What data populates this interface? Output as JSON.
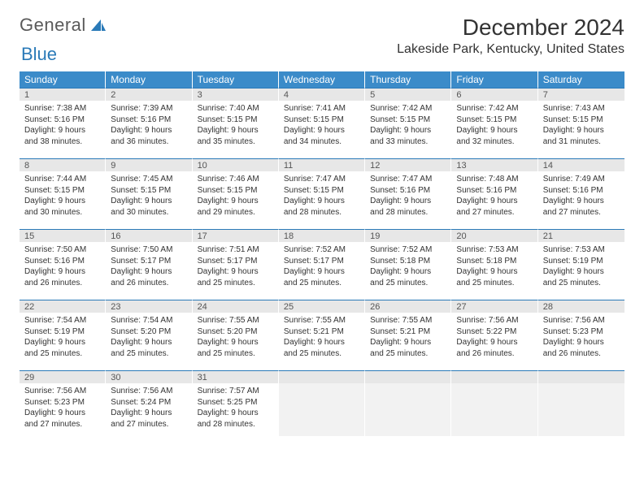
{
  "logo": {
    "text1": "General",
    "text2": "Blue"
  },
  "title": "December 2024",
  "location": "Lakeside Park, Kentucky, United States",
  "colors": {
    "header_bg": "#3b8bc9",
    "header_text": "#ffffff",
    "daynum_bg": "#e7e7e7",
    "border_blue": "#2a7ab8",
    "body_text": "#333333"
  },
  "day_names": [
    "Sunday",
    "Monday",
    "Tuesday",
    "Wednesday",
    "Thursday",
    "Friday",
    "Saturday"
  ],
  "weeks": [
    [
      {
        "n": "1",
        "sr": "Sunrise: 7:38 AM",
        "ss": "Sunset: 5:16 PM",
        "d1": "Daylight: 9 hours",
        "d2": "and 38 minutes."
      },
      {
        "n": "2",
        "sr": "Sunrise: 7:39 AM",
        "ss": "Sunset: 5:16 PM",
        "d1": "Daylight: 9 hours",
        "d2": "and 36 minutes."
      },
      {
        "n": "3",
        "sr": "Sunrise: 7:40 AM",
        "ss": "Sunset: 5:15 PM",
        "d1": "Daylight: 9 hours",
        "d2": "and 35 minutes."
      },
      {
        "n": "4",
        "sr": "Sunrise: 7:41 AM",
        "ss": "Sunset: 5:15 PM",
        "d1": "Daylight: 9 hours",
        "d2": "and 34 minutes."
      },
      {
        "n": "5",
        "sr": "Sunrise: 7:42 AM",
        "ss": "Sunset: 5:15 PM",
        "d1": "Daylight: 9 hours",
        "d2": "and 33 minutes."
      },
      {
        "n": "6",
        "sr": "Sunrise: 7:42 AM",
        "ss": "Sunset: 5:15 PM",
        "d1": "Daylight: 9 hours",
        "d2": "and 32 minutes."
      },
      {
        "n": "7",
        "sr": "Sunrise: 7:43 AM",
        "ss": "Sunset: 5:15 PM",
        "d1": "Daylight: 9 hours",
        "d2": "and 31 minutes."
      }
    ],
    [
      {
        "n": "8",
        "sr": "Sunrise: 7:44 AM",
        "ss": "Sunset: 5:15 PM",
        "d1": "Daylight: 9 hours",
        "d2": "and 30 minutes."
      },
      {
        "n": "9",
        "sr": "Sunrise: 7:45 AM",
        "ss": "Sunset: 5:15 PM",
        "d1": "Daylight: 9 hours",
        "d2": "and 30 minutes."
      },
      {
        "n": "10",
        "sr": "Sunrise: 7:46 AM",
        "ss": "Sunset: 5:15 PM",
        "d1": "Daylight: 9 hours",
        "d2": "and 29 minutes."
      },
      {
        "n": "11",
        "sr": "Sunrise: 7:47 AM",
        "ss": "Sunset: 5:15 PM",
        "d1": "Daylight: 9 hours",
        "d2": "and 28 minutes."
      },
      {
        "n": "12",
        "sr": "Sunrise: 7:47 AM",
        "ss": "Sunset: 5:16 PM",
        "d1": "Daylight: 9 hours",
        "d2": "and 28 minutes."
      },
      {
        "n": "13",
        "sr": "Sunrise: 7:48 AM",
        "ss": "Sunset: 5:16 PM",
        "d1": "Daylight: 9 hours",
        "d2": "and 27 minutes."
      },
      {
        "n": "14",
        "sr": "Sunrise: 7:49 AM",
        "ss": "Sunset: 5:16 PM",
        "d1": "Daylight: 9 hours",
        "d2": "and 27 minutes."
      }
    ],
    [
      {
        "n": "15",
        "sr": "Sunrise: 7:50 AM",
        "ss": "Sunset: 5:16 PM",
        "d1": "Daylight: 9 hours",
        "d2": "and 26 minutes."
      },
      {
        "n": "16",
        "sr": "Sunrise: 7:50 AM",
        "ss": "Sunset: 5:17 PM",
        "d1": "Daylight: 9 hours",
        "d2": "and 26 minutes."
      },
      {
        "n": "17",
        "sr": "Sunrise: 7:51 AM",
        "ss": "Sunset: 5:17 PM",
        "d1": "Daylight: 9 hours",
        "d2": "and 25 minutes."
      },
      {
        "n": "18",
        "sr": "Sunrise: 7:52 AM",
        "ss": "Sunset: 5:17 PM",
        "d1": "Daylight: 9 hours",
        "d2": "and 25 minutes."
      },
      {
        "n": "19",
        "sr": "Sunrise: 7:52 AM",
        "ss": "Sunset: 5:18 PM",
        "d1": "Daylight: 9 hours",
        "d2": "and 25 minutes."
      },
      {
        "n": "20",
        "sr": "Sunrise: 7:53 AM",
        "ss": "Sunset: 5:18 PM",
        "d1": "Daylight: 9 hours",
        "d2": "and 25 minutes."
      },
      {
        "n": "21",
        "sr": "Sunrise: 7:53 AM",
        "ss": "Sunset: 5:19 PM",
        "d1": "Daylight: 9 hours",
        "d2": "and 25 minutes."
      }
    ],
    [
      {
        "n": "22",
        "sr": "Sunrise: 7:54 AM",
        "ss": "Sunset: 5:19 PM",
        "d1": "Daylight: 9 hours",
        "d2": "and 25 minutes."
      },
      {
        "n": "23",
        "sr": "Sunrise: 7:54 AM",
        "ss": "Sunset: 5:20 PM",
        "d1": "Daylight: 9 hours",
        "d2": "and 25 minutes."
      },
      {
        "n": "24",
        "sr": "Sunrise: 7:55 AM",
        "ss": "Sunset: 5:20 PM",
        "d1": "Daylight: 9 hours",
        "d2": "and 25 minutes."
      },
      {
        "n": "25",
        "sr": "Sunrise: 7:55 AM",
        "ss": "Sunset: 5:21 PM",
        "d1": "Daylight: 9 hours",
        "d2": "and 25 minutes."
      },
      {
        "n": "26",
        "sr": "Sunrise: 7:55 AM",
        "ss": "Sunset: 5:21 PM",
        "d1": "Daylight: 9 hours",
        "d2": "and 25 minutes."
      },
      {
        "n": "27",
        "sr": "Sunrise: 7:56 AM",
        "ss": "Sunset: 5:22 PM",
        "d1": "Daylight: 9 hours",
        "d2": "and 26 minutes."
      },
      {
        "n": "28",
        "sr": "Sunrise: 7:56 AM",
        "ss": "Sunset: 5:23 PM",
        "d1": "Daylight: 9 hours",
        "d2": "and 26 minutes."
      }
    ],
    [
      {
        "n": "29",
        "sr": "Sunrise: 7:56 AM",
        "ss": "Sunset: 5:23 PM",
        "d1": "Daylight: 9 hours",
        "d2": "and 27 minutes."
      },
      {
        "n": "30",
        "sr": "Sunrise: 7:56 AM",
        "ss": "Sunset: 5:24 PM",
        "d1": "Daylight: 9 hours",
        "d2": "and 27 minutes."
      },
      {
        "n": "31",
        "sr": "Sunrise: 7:57 AM",
        "ss": "Sunset: 5:25 PM",
        "d1": "Daylight: 9 hours",
        "d2": "and 28 minutes."
      },
      {
        "empty": true
      },
      {
        "empty": true
      },
      {
        "empty": true
      },
      {
        "empty": true
      }
    ]
  ]
}
